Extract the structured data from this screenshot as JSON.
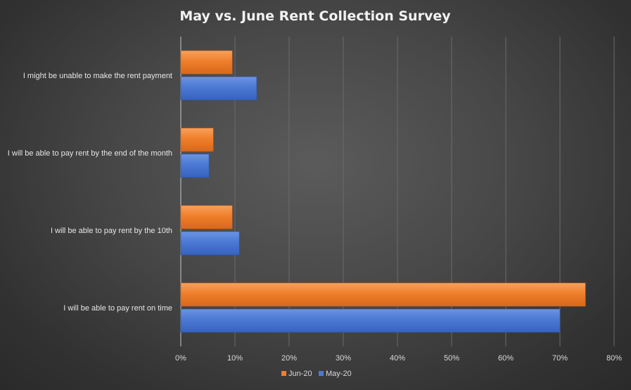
{
  "colors": {
    "jun": "#f07f2b",
    "jun_dark": "#c85f14",
    "may": "#4b79d3",
    "may_dark": "#2f58ad"
  },
  "chart_data": {
    "type": "bar",
    "orientation": "horizontal",
    "title": "May vs. June Rent Collection Survey",
    "categories": [
      "I might be unable to make the rent payment",
      "I will be able to pay rent by the end of the month",
      "I will be able to pay rent by the 10th",
      "I will be able to pay rent on time"
    ],
    "series": [
      {
        "name": "Jun-20",
        "values": [
          9.5,
          6.0,
          9.5,
          74.7
        ]
      },
      {
        "name": "May-20",
        "values": [
          14.0,
          5.2,
          10.8,
          70.0
        ]
      }
    ],
    "xlim": [
      0,
      80
    ],
    "ticks": [
      "0%",
      "10%",
      "20%",
      "30%",
      "40%",
      "50%",
      "60%",
      "70%",
      "80%"
    ],
    "tick_values": [
      0,
      10,
      20,
      30,
      40,
      50,
      60,
      70,
      80
    ],
    "grid": true,
    "legend": "bottom"
  }
}
